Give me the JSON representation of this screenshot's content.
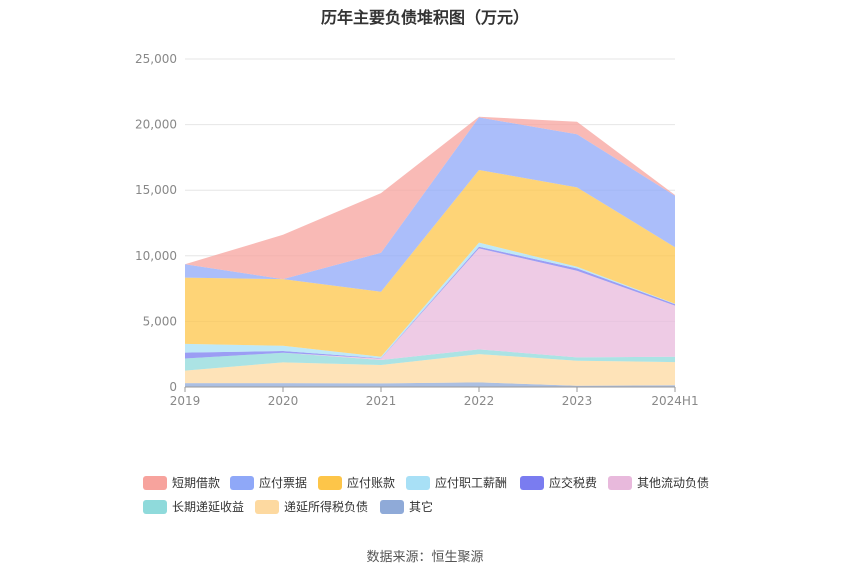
{
  "chart_data": {
    "type": "area",
    "stacked": true,
    "title": "历年主要负债堆积图（万元）",
    "source": "数据来源：恒生聚源",
    "categories": [
      "2019",
      "2020",
      "2021",
      "2022",
      "2023",
      "2024H1"
    ],
    "ylim": [
      0,
      25000
    ],
    "yticks": [
      "0",
      "5,000",
      "10,000",
      "15,000",
      "20,000",
      "25,000"
    ],
    "grid": true,
    "legend_position": "bottom",
    "series": [
      {
        "name": "其它",
        "color": "#8faad8",
        "values": [
          300,
          300,
          280,
          350,
          100,
          130
        ]
      },
      {
        "name": "递延所得税负债",
        "color": "#fdd9a0",
        "values": [
          950,
          1580,
          1400,
          2160,
          1900,
          1770
        ]
      },
      {
        "name": "长期递延收益",
        "color": "#8fdadb",
        "values": [
          920,
          730,
          380,
          360,
          260,
          410
        ]
      },
      {
        "name": "其他流动负债",
        "color": "#e8b9dc",
        "values": [
          0,
          0,
          100,
          7700,
          6600,
          3890
        ]
      },
      {
        "name": "应交税费",
        "color": "#7a7cf0",
        "values": [
          450,
          130,
          30,
          120,
          180,
          120
        ]
      },
      {
        "name": "应付职工薪酬",
        "color": "#a8e0f6",
        "values": [
          670,
          400,
          120,
          310,
          130,
          30
        ]
      },
      {
        "name": "应付账款",
        "color": "#fdc549",
        "values": [
          5050,
          5080,
          4950,
          5540,
          6050,
          4300
        ]
      },
      {
        "name": "应付票据",
        "color": "#8fa8f8",
        "values": [
          1020,
          0,
          2970,
          4010,
          4040,
          3930
        ]
      },
      {
        "name": "短期借款",
        "color": "#f7a39d",
        "values": [
          0,
          3380,
          4550,
          50,
          960,
          50
        ]
      }
    ],
    "legend_order": [
      8,
      7,
      6,
      5,
      4,
      3,
      2,
      1,
      0
    ]
  }
}
